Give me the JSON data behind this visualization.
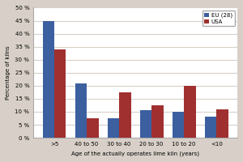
{
  "categories": [
    ">5",
    "40 to 50",
    "30 to 40",
    "20 to 30",
    "10 to 20",
    "<10"
  ],
  "eu_values": [
    45,
    21,
    7.5,
    10.5,
    10,
    8
  ],
  "usa_values": [
    34,
    7.5,
    17.5,
    12.5,
    20,
    11
  ],
  "eu_color": "#3C5FA0",
  "usa_color": "#A03030",
  "ylabel": "Percentage of kilns",
  "xlabel": "Age of the actually operates lime kiln (years)",
  "ylim": [
    0,
    50
  ],
  "yticks": [
    0,
    5,
    10,
    15,
    20,
    25,
    30,
    35,
    40,
    45,
    50
  ],
  "ytick_labels": [
    "0 %",
    "5 %",
    "10 %",
    "15 %",
    "20 %",
    "25 %",
    "30 %",
    "35 %",
    "40 %",
    "45 %",
    "50 %"
  ],
  "legend_eu": "EU (28)",
  "legend_usa": "USA",
  "fig_background_color": "#D8D0C8",
  "plot_background_color": "#FFFFFF",
  "grid_color": "#D8D0C8",
  "bar_width": 0.36
}
